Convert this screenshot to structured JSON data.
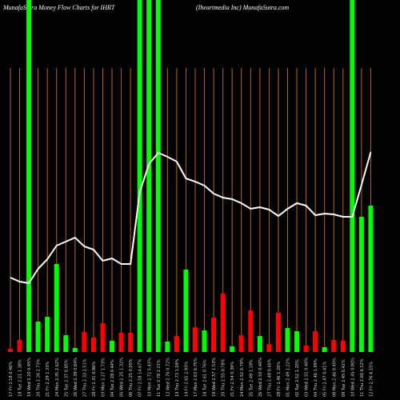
{
  "chart_data": {
    "type": "bar",
    "title": "MunafaSutra  Money Flow  Charts for IHRT",
    "subtitle": "(Iheartmedia  Inc) MunafaSutra.com",
    "categories": [
      "17 Fri 2.18 0.46%",
      "18 Tue 2.21 1.38%",
      "19 Wed 2.20 0.45%",
      "20 Thu 2.26 2.73%",
      "21 Fri 2.29 1.33%",
      "24 Mon 2.35 2.62%",
      "25 Tue 2.37 0.85%",
      "26 Wed 2.39 0.84%",
      "27 Thu 2.33 2.51%",
      "28 Fri 2.31 0.86%",
      "03 Mon 2.27 1.73%",
      "04 Tue 2.28 0.44%",
      "05 Wed 2.25 1.32%",
      "06 Thu 2.25 0.00%",
      "07 Fri 2.58 14.67%",
      "10 Mon 2.72 5.43%",
      "11 Tue 2.78 2.21%",
      "12 Wed 2.76 0.72%",
      "13 Thu 2.73 1.09%",
      "14 Fri 2.65 2.93%",
      "17 Mon 2.63 0.75%",
      "18 Tue 2.61 0.76%",
      "19 Wed 2.57 1.53%",
      "20 Thu 2.55 0.78%",
      "21 Fri 2.54 0.39%",
      "24 Mon 2.52 0.79%",
      "25 Tue 2.49 1.19%",
      "26 Wed 2.50 0.40%",
      "27 Thu 2.49 0.40%",
      "28 Fri 2.46 1.20%",
      "01 Mon 2.49 1.22%",
      "02 Tue 2.52 1.20%",
      "03 Wed 2.51 0.40%",
      "04 Thu 2.46 1.99%",
      "05 Fri 2.47 0.41%",
      "08 Mon 2.46 0.40%",
      "09 Tue 2.45 0.41%",
      "10 Wed 2.45 0.00%",
      "11 Thu 2.60 6.12%",
      "12 Fri 2.76 6.15%"
    ],
    "series": [
      {
        "name": "Money flow",
        "colors": [
          "#ff0000",
          "#ff0000",
          "#00ff00",
          "#00ff00",
          "#00ff00",
          "#00ff00",
          "#00ff00",
          "#00ff00",
          "#ff0000",
          "#ff0000",
          "#ff0000",
          "#00ff00",
          "#ff0000",
          "#ff0000",
          "#00ff00",
          "#00ff00",
          "#00ff00",
          "#00ff00",
          "#ff0000",
          "#00ff00",
          "#ff0000",
          "#00ff00",
          "#ff0000",
          "#ff0000",
          "#00ff00",
          "#ff0000",
          "#ff0000",
          "#00ff00",
          "#ff0000",
          "#ff0000",
          "#00ff00",
          "#00ff00",
          "#ff0000",
          "#ff0000",
          "#00ff00",
          "#ff0000",
          "#ff0000",
          "#00ff00",
          "#00ff00",
          "#00ff00"
        ],
        "values": [
          4,
          15,
          440,
          38,
          44,
          110,
          21,
          5,
          25,
          18,
          36,
          14,
          24,
          24,
          440,
          440,
          440,
          13,
          20,
          103,
          31,
          27,
          43,
          73,
          7,
          21,
          52,
          20,
          10,
          49,
          30,
          26,
          8,
          26,
          6,
          15,
          14,
          440,
          169,
          183
        ]
      },
      {
        "name": "Price",
        "color": "#ffffff",
        "values": [
          93,
          88,
          86,
          104,
          116,
          133,
          138,
          143,
          132,
          128,
          114,
          117,
          110,
          110,
          200,
          235,
          249,
          244,
          238,
          217,
          213,
          208,
          198,
          193,
          191,
          186,
          179,
          181,
          178,
          170,
          179,
          186,
          183,
          171,
          173,
          172,
          169,
          169,
          209,
          250
        ]
      }
    ],
    "ylim": [
      0,
      440
    ],
    "grid_color": "#b8651b"
  }
}
